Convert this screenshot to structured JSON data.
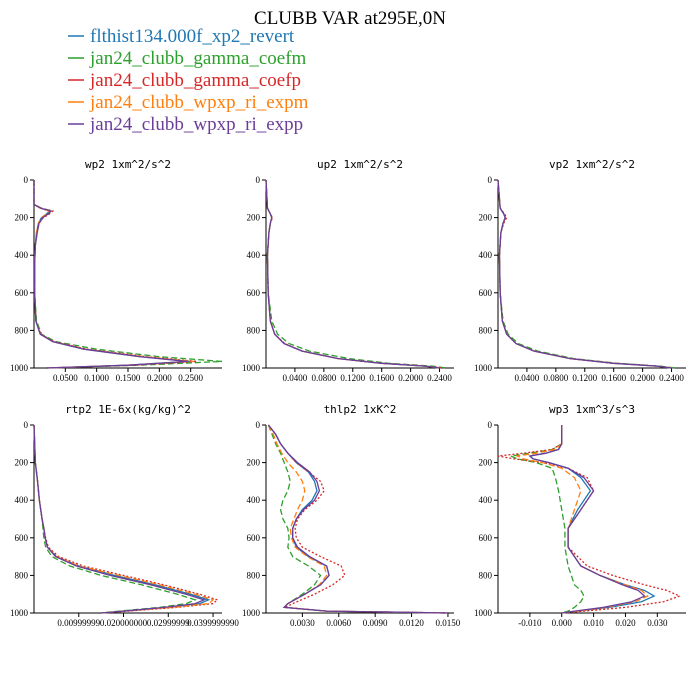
{
  "figure": {
    "title": "CLUBB VAR at295E,0N",
    "legend": [
      {
        "name": "flthist134.000f_xp2_revert",
        "color": "#1f77b4"
      },
      {
        "name": "jan24_clubb_gamma_coefm",
        "color": "#2ca02c"
      },
      {
        "name": "jan24_clubb_gamma_coefp",
        "color": "#d62728"
      },
      {
        "name": "jan24_clubb_wpxp_ri_expm",
        "color": "#ff7f0e"
      },
      {
        "name": "jan24_clubb_wpxp_ri_expp",
        "color": "#6a3d9a"
      }
    ]
  },
  "chart_data": [
    {
      "type": "line",
      "title": "wp2   1xm^2/s^2",
      "xlim": [
        0,
        0.3
      ],
      "ylim": [
        1000,
        0
      ],
      "xticks": [
        0.05,
        0.1,
        0.15,
        0.2,
        0.25
      ],
      "xtick_labels": [
        "0.0500",
        "0.1000",
        "0.1500",
        "0.2000",
        "0.2500"
      ],
      "yticks": [
        0,
        200,
        400,
        600,
        800,
        1000
      ],
      "ytick_labels": [
        "0",
        "200",
        "400",
        "600",
        "800",
        "1000"
      ],
      "y": [
        0,
        130,
        150,
        165,
        180,
        200,
        230,
        280,
        350,
        450,
        600,
        750,
        820,
        860,
        900,
        940,
        965,
        985,
        1000
      ],
      "series": [
        {
          "name": "flthist134.000f_xp2_revert",
          "values": [
            0,
            0,
            0.01,
            0.025,
            0.02,
            0.012,
            0.007,
            0.004,
            0.002,
            0.001,
            0.001,
            0.003,
            0.01,
            0.03,
            0.08,
            0.17,
            0.25,
            0.15,
            0.02
          ]
        },
        {
          "name": "jan24_clubb_gamma_coefm",
          "values": [
            0,
            0,
            0.012,
            0.028,
            0.022,
            0.014,
            0.008,
            0.005,
            0.002,
            0.001,
            0.001,
            0.004,
            0.012,
            0.035,
            0.1,
            0.2,
            0.3,
            0.17,
            0.02
          ]
        },
        {
          "name": "jan24_clubb_gamma_coefp",
          "values": [
            0,
            0,
            0.012,
            0.03,
            0.025,
            0.015,
            0.008,
            0.005,
            0.002,
            0.001,
            0.001,
            0.003,
            0.011,
            0.032,
            0.085,
            0.18,
            0.26,
            0.16,
            0.02
          ]
        },
        {
          "name": "jan24_clubb_wpxp_ri_expm",
          "values": [
            0,
            0,
            0.01,
            0.024,
            0.02,
            0.012,
            0.007,
            0.004,
            0.002,
            0.001,
            0.001,
            0.003,
            0.01,
            0.03,
            0.082,
            0.175,
            0.255,
            0.15,
            0.02
          ]
        },
        {
          "name": "jan24_clubb_wpxp_ri_expp",
          "values": [
            0,
            0,
            0.011,
            0.027,
            0.023,
            0.014,
            0.008,
            0.005,
            0.002,
            0.001,
            0.001,
            0.003,
            0.01,
            0.03,
            0.08,
            0.17,
            0.245,
            0.15,
            0.02
          ]
        }
      ]
    },
    {
      "type": "line",
      "title": "up2   1xm^2/s^2",
      "xlim": [
        0,
        0.26
      ],
      "ylim": [
        1000,
        0
      ],
      "xticks": [
        0.04,
        0.08,
        0.12,
        0.16,
        0.2,
        0.24
      ],
      "xtick_labels": [
        "0.0400",
        "0.0800",
        "0.1200",
        "0.1600",
        "0.2000",
        "0.2400"
      ],
      "yticks": [
        0,
        200,
        400,
        600,
        800,
        1000
      ],
      "ytick_labels": [
        "0",
        "200",
        "400",
        "600",
        "800",
        "1000"
      ],
      "y": [
        0,
        150,
        180,
        200,
        230,
        280,
        400,
        600,
        750,
        820,
        870,
        910,
        950,
        975,
        990,
        1000
      ],
      "series": [
        {
          "name": "flthist134.000f_xp2_revert",
          "values": [
            0,
            0.002,
            0.006,
            0.008,
            0.006,
            0.004,
            0.002,
            0.003,
            0.006,
            0.012,
            0.025,
            0.05,
            0.1,
            0.16,
            0.22,
            0.24
          ]
        },
        {
          "name": "jan24_clubb_gamma_coefm",
          "values": [
            0,
            0.002,
            0.006,
            0.008,
            0.006,
            0.004,
            0.002,
            0.003,
            0.008,
            0.016,
            0.032,
            0.06,
            0.115,
            0.17,
            0.23,
            0.25
          ]
        },
        {
          "name": "jan24_clubb_gamma_coefp",
          "values": [
            0,
            0.002,
            0.006,
            0.009,
            0.006,
            0.004,
            0.002,
            0.003,
            0.006,
            0.012,
            0.026,
            0.05,
            0.1,
            0.16,
            0.22,
            0.245
          ]
        },
        {
          "name": "jan24_clubb_wpxp_ri_expm",
          "values": [
            0,
            0.002,
            0.006,
            0.008,
            0.006,
            0.004,
            0.002,
            0.003,
            0.006,
            0.012,
            0.025,
            0.05,
            0.1,
            0.16,
            0.22,
            0.24
          ]
        },
        {
          "name": "jan24_clubb_wpxp_ri_expp",
          "values": [
            0,
            0.002,
            0.006,
            0.008,
            0.006,
            0.004,
            0.002,
            0.003,
            0.006,
            0.012,
            0.025,
            0.05,
            0.1,
            0.16,
            0.22,
            0.24
          ]
        }
      ]
    },
    {
      "type": "line",
      "title": "vp2   1xm^2/s^2",
      "xlim": [
        0,
        0.26
      ],
      "ylim": [
        1000,
        0
      ],
      "xticks": [
        0.04,
        0.08,
        0.12,
        0.16,
        0.2,
        0.24
      ],
      "xtick_labels": [
        "0.0400",
        "0.0800",
        "0.1200",
        "0.1600",
        "0.2000",
        "0.2400"
      ],
      "yticks": [
        0,
        200,
        400,
        600,
        800,
        1000
      ],
      "ytick_labels": [
        "0",
        "200",
        "400",
        "600",
        "800",
        "1000"
      ],
      "y": [
        0,
        150,
        180,
        200,
        230,
        280,
        400,
        600,
        750,
        820,
        870,
        910,
        950,
        975,
        990,
        1000
      ],
      "series": [
        {
          "name": "flthist134.000f_xp2_revert",
          "values": [
            0,
            0.003,
            0.008,
            0.01,
            0.007,
            0.004,
            0.002,
            0.003,
            0.006,
            0.012,
            0.025,
            0.05,
            0.1,
            0.16,
            0.22,
            0.24
          ]
        },
        {
          "name": "jan24_clubb_gamma_coefm",
          "values": [
            0,
            0.003,
            0.008,
            0.01,
            0.007,
            0.004,
            0.002,
            0.003,
            0.007,
            0.014,
            0.028,
            0.055,
            0.105,
            0.165,
            0.225,
            0.245
          ]
        },
        {
          "name": "jan24_clubb_gamma_coefp",
          "values": [
            0,
            0.003,
            0.009,
            0.012,
            0.008,
            0.004,
            0.002,
            0.003,
            0.006,
            0.012,
            0.025,
            0.05,
            0.1,
            0.16,
            0.22,
            0.24
          ]
        },
        {
          "name": "jan24_clubb_wpxp_ri_expm",
          "values": [
            0,
            0.003,
            0.008,
            0.01,
            0.007,
            0.004,
            0.002,
            0.003,
            0.006,
            0.012,
            0.025,
            0.05,
            0.1,
            0.16,
            0.22,
            0.24
          ]
        },
        {
          "name": "jan24_clubb_wpxp_ri_expp",
          "values": [
            0,
            0.003,
            0.008,
            0.01,
            0.007,
            0.004,
            0.002,
            0.003,
            0.006,
            0.012,
            0.025,
            0.05,
            0.1,
            0.16,
            0.22,
            0.24
          ]
        }
      ]
    },
    {
      "type": "line",
      "title": "rtp2   1E-6x(kg/kg)^2",
      "xlim": [
        0,
        0.042
      ],
      "ylim": [
        1000,
        0
      ],
      "xticks": [
        0.01,
        0.02,
        0.03,
        0.04
      ],
      "xtick_labels": [
        "0.00999999",
        "0.020000000",
        "0.02999999",
        "0.0399999990"
      ],
      "yticks": [
        0,
        200,
        400,
        600,
        800,
        1000
      ],
      "ytick_labels": [
        "0",
        "200",
        "400",
        "600",
        "800",
        "1000"
      ],
      "y": [
        0,
        200,
        300,
        400,
        500,
        550,
        600,
        650,
        700,
        750,
        800,
        850,
        900,
        930,
        950,
        970,
        990,
        1000
      ],
      "series": [
        {
          "name": "flthist134.000f_xp2_revert",
          "values": [
            0,
            0.0003,
            0.0008,
            0.0012,
            0.0018,
            0.0022,
            0.0025,
            0.003,
            0.005,
            0.01,
            0.018,
            0.027,
            0.035,
            0.039,
            0.037,
            0.03,
            0.02,
            0.015
          ]
        },
        {
          "name": "jan24_clubb_gamma_coefm",
          "values": [
            0,
            0.0003,
            0.0008,
            0.0012,
            0.0018,
            0.002,
            0.0022,
            0.0026,
            0.004,
            0.008,
            0.015,
            0.024,
            0.032,
            0.036,
            0.034,
            0.028,
            0.019,
            0.015
          ]
        },
        {
          "name": "jan24_clubb_gamma_coefp",
          "values": [
            0,
            0.0003,
            0.0008,
            0.0012,
            0.0018,
            0.0022,
            0.0026,
            0.0032,
            0.0055,
            0.011,
            0.02,
            0.029,
            0.037,
            0.041,
            0.04,
            0.032,
            0.021,
            0.015
          ]
        },
        {
          "name": "jan24_clubb_wpxp_ri_expm",
          "values": [
            0,
            0.0003,
            0.0008,
            0.0012,
            0.0018,
            0.0022,
            0.0025,
            0.003,
            0.005,
            0.01,
            0.019,
            0.028,
            0.036,
            0.04,
            0.039,
            0.031,
            0.02,
            0.015
          ]
        },
        {
          "name": "jan24_clubb_wpxp_ri_expp",
          "values": [
            0,
            0.0003,
            0.0008,
            0.0012,
            0.0018,
            0.0022,
            0.0025,
            0.003,
            0.0048,
            0.0095,
            0.017,
            0.026,
            0.034,
            0.038,
            0.036,
            0.029,
            0.02,
            0.015
          ]
        }
      ]
    },
    {
      "type": "line",
      "title": "thlp2   1xK^2",
      "xlim": [
        0,
        0.0155
      ],
      "ylim": [
        1000,
        0
      ],
      "xticks": [
        0.003,
        0.006,
        0.009,
        0.012,
        0.015
      ],
      "xtick_labels": [
        "0.0030",
        "0.0060",
        "0.0090",
        "0.0120",
        "0.0150"
      ],
      "yticks": [
        0,
        200,
        400,
        600,
        800,
        1000
      ],
      "ytick_labels": [
        "0",
        "200",
        "400",
        "600",
        "800",
        "1000"
      ],
      "y": [
        0,
        50,
        100,
        150,
        200,
        250,
        300,
        350,
        400,
        450,
        500,
        550,
        600,
        650,
        700,
        750,
        800,
        850,
        900,
        950,
        970,
        990,
        1000
      ],
      "series": [
        {
          "name": "flthist134.000f_xp2_revert",
          "values": [
            0.0002,
            0.0008,
            0.0012,
            0.0018,
            0.0025,
            0.0035,
            0.004,
            0.0042,
            0.0038,
            0.003,
            0.0025,
            0.0022,
            0.0022,
            0.0025,
            0.0035,
            0.005,
            0.0052,
            0.0045,
            0.0032,
            0.0018,
            0.0015,
            0.005,
            0.015
          ]
        },
        {
          "name": "jan24_clubb_gamma_coefm",
          "values": [
            0.0002,
            0.0005,
            0.0008,
            0.0012,
            0.0015,
            0.0018,
            0.002,
            0.0018,
            0.0014,
            0.0012,
            0.0014,
            0.0018,
            0.0019,
            0.0018,
            0.0022,
            0.0035,
            0.0045,
            0.004,
            0.003,
            0.0018,
            0.0015,
            0.005,
            0.015
          ]
        },
        {
          "name": "jan24_clubb_gamma_coefp",
          "values": [
            0.0002,
            0.0008,
            0.0012,
            0.0018,
            0.0025,
            0.0035,
            0.0045,
            0.0048,
            0.0042,
            0.0032,
            0.0026,
            0.0024,
            0.0025,
            0.003,
            0.0045,
            0.0062,
            0.0065,
            0.0055,
            0.004,
            0.0022,
            0.0016,
            0.005,
            0.015
          ]
        },
        {
          "name": "jan24_clubb_wpxp_ri_expm",
          "values": [
            0.0002,
            0.0006,
            0.0009,
            0.0013,
            0.0018,
            0.0025,
            0.003,
            0.0032,
            0.003,
            0.0026,
            0.0023,
            0.002,
            0.0021,
            0.0024,
            0.0034,
            0.0048,
            0.005,
            0.0044,
            0.0032,
            0.0018,
            0.0015,
            0.005,
            0.015
          ]
        },
        {
          "name": "jan24_clubb_wpxp_ri_expp",
          "values": [
            0.0002,
            0.0008,
            0.0012,
            0.0018,
            0.0026,
            0.0036,
            0.0042,
            0.0044,
            0.004,
            0.0031,
            0.0025,
            0.0022,
            0.0022,
            0.0026,
            0.0036,
            0.005,
            0.0052,
            0.0045,
            0.0032,
            0.0018,
            0.0015,
            0.005,
            0.015
          ]
        }
      ]
    },
    {
      "type": "line",
      "title": "wp3   1xm^3/s^3",
      "xlim": [
        -0.02,
        0.039
      ],
      "ylim": [
        1000,
        0
      ],
      "xticks": [
        -0.01,
        0,
        0.01,
        0.02,
        0.03
      ],
      "xtick_labels": [
        "-0.010",
        "0.000",
        "0.010",
        "0.020",
        "0.030"
      ],
      "yticks": [
        0,
        200,
        400,
        600,
        800,
        1000
      ],
      "ytick_labels": [
        "0",
        "200",
        "400",
        "600",
        "800",
        "1000"
      ],
      "y": [
        0,
        100,
        130,
        150,
        165,
        180,
        200,
        230,
        280,
        350,
        450,
        550,
        650,
        750,
        800,
        850,
        880,
        910,
        940,
        970,
        990,
        1000
      ],
      "series": [
        {
          "name": "flthist134.000f_xp2_revert",
          "values": [
            0,
            0,
            -0.001,
            -0.005,
            -0.01,
            -0.009,
            -0.004,
            0.002,
            0.006,
            0.009,
            0.005,
            0.002,
            0.002,
            0.006,
            0.012,
            0.02,
            0.026,
            0.029,
            0.025,
            0.015,
            0.005,
            0
          ]
        },
        {
          "name": "jan24_clubb_gamma_coefm",
          "values": [
            0,
            0,
            -0.003,
            -0.01,
            -0.016,
            -0.014,
            -0.008,
            -0.003,
            -0.002,
            -0.001,
            0,
            0.001,
            0.001,
            0.002,
            0.003,
            0.004,
            0.006,
            0.007,
            0.006,
            0.004,
            0.002,
            0
          ]
        },
        {
          "name": "jan24_clubb_gamma_coefp",
          "values": [
            0,
            0,
            -0.003,
            -0.012,
            -0.02,
            -0.015,
            -0.006,
            0.002,
            0.008,
            0.01,
            0.006,
            0.002,
            0.002,
            0.008,
            0.016,
            0.026,
            0.033,
            0.037,
            0.032,
            0.02,
            0.007,
            0
          ]
        },
        {
          "name": "jan24_clubb_wpxp_ri_expm",
          "values": [
            0,
            0,
            -0.002,
            -0.008,
            -0.014,
            -0.012,
            -0.006,
            0,
            0.004,
            0.006,
            0.004,
            0.002,
            0.002,
            0.006,
            0.012,
            0.02,
            0.025,
            0.027,
            0.023,
            0.014,
            0.005,
            0
          ]
        },
        {
          "name": "jan24_clubb_wpxp_ri_expp",
          "values": [
            0,
            0,
            -0.001,
            -0.005,
            -0.01,
            -0.009,
            -0.004,
            0.002,
            0.007,
            0.01,
            0.006,
            0.002,
            0.002,
            0.006,
            0.012,
            0.019,
            0.024,
            0.026,
            0.022,
            0.013,
            0.004,
            0
          ]
        }
      ]
    }
  ]
}
